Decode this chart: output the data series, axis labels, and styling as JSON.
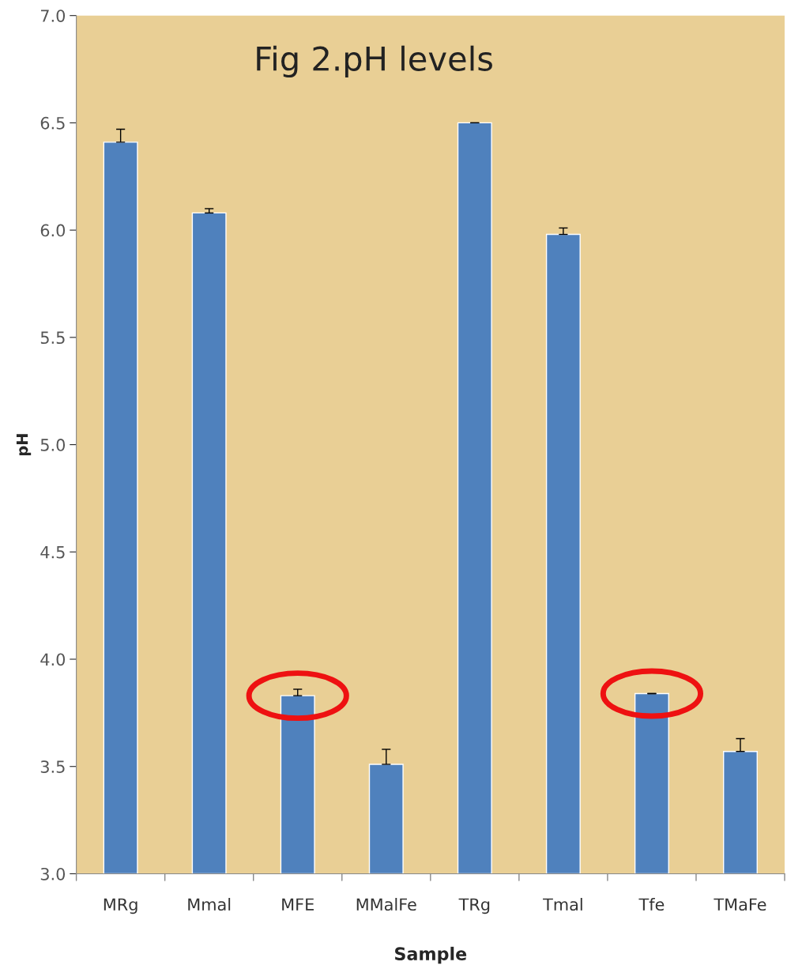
{
  "chart_data": {
    "type": "bar",
    "title": "Fig 2.pH levels",
    "xlabel": "Sample",
    "ylabel": "pH",
    "categories": [
      "MRg",
      "Mmal",
      "MFE",
      "MMalFe",
      "TRg",
      "Tmal",
      "Tfe",
      "TMaFe"
    ],
    "values": [
      6.41,
      6.08,
      3.83,
      3.51,
      6.5,
      5.98,
      3.84,
      3.57
    ],
    "errors": [
      [
        6.41,
        6.47
      ],
      [
        6.08,
        6.1
      ],
      [
        3.83,
        3.86
      ],
      [
        3.51,
        3.58
      ],
      [
        6.5,
        6.5
      ],
      [
        5.98,
        6.01
      ],
      [
        3.84,
        3.84
      ],
      [
        3.57,
        3.63
      ]
    ],
    "color": "#4f81bd",
    "ylim": [
      3.0,
      7.0
    ],
    "yticks": [
      {
        "value": 3.0,
        "label": "3.0"
      },
      {
        "value": 3.5,
        "label": "3.5"
      },
      {
        "value": 4.0,
        "label": "4.0"
      },
      {
        "value": 4.5,
        "label": "4.5"
      },
      {
        "value": 5.0,
        "label": "5.0"
      },
      {
        "value": 5.5,
        "label": "5.5"
      },
      {
        "value": 6.0,
        "label": "6.0"
      },
      {
        "value": 6.5,
        "label": "6.5"
      },
      {
        "value": 7.0,
        "label": "7.0"
      }
    ],
    "grid": false
  }
}
